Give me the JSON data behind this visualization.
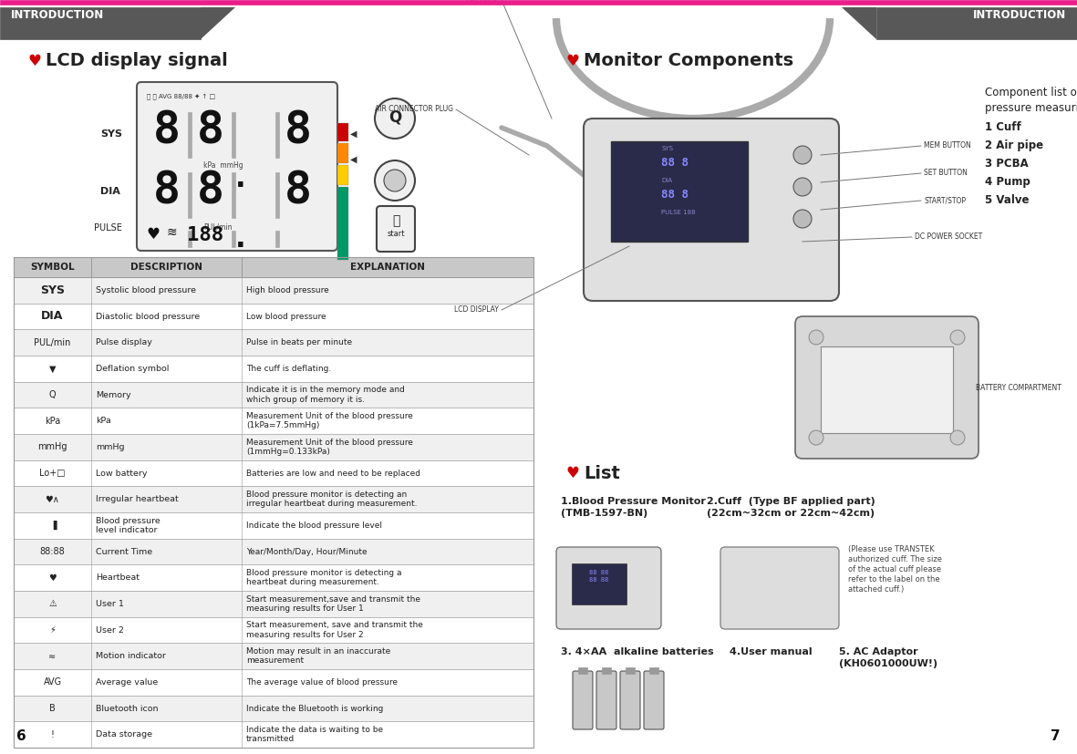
{
  "bg_color": "#ffffff",
  "header_color": "#585858",
  "header_text_color": "#ffffff",
  "pink_line_color": "#e91e8c",
  "page_title_left": "INTRODUCTION",
  "page_title_right": "INTRODUCTION",
  "page_num_left": "6",
  "page_num_right": "7",
  "heart_color": "#cc0000",
  "left_section_title": "LCD display signal",
  "table_header": [
    "SYMBOL",
    "DESCRIPTION",
    "EXPLANATION"
  ],
  "table_rows": [
    [
      "SYS",
      "Systolic blood pressure",
      "High blood pressure"
    ],
    [
      "DIA",
      "Diastolic blood pressure",
      "Low blood pressure"
    ],
    [
      "PUL/min",
      "Pulse display",
      "Pulse in beats per minute"
    ],
    [
      "▼",
      "Deflation symbol",
      "The cuff is deflating."
    ],
    [
      "Q",
      "Memory",
      "Indicate it is in the memory mode and\nwhich group of memory it is."
    ],
    [
      "kPa",
      "kPa",
      "Measurement Unit of the blood pressure\n(1kPa=7.5mmHg)"
    ],
    [
      "mmHg",
      "mmHg",
      "Measurement Unit of the blood pressure\n(1mmHg=0.133kPa)"
    ],
    [
      "Lo+□",
      "Low battery",
      "Batteries are low and need to be replaced"
    ],
    [
      "♥∧",
      "Irregular heartbeat",
      "Blood pressure monitor is detecting an\nirregular heartbeat during measurement."
    ],
    [
      "▐",
      "Blood pressure\nlevel indicator",
      "Indicate the blood pressure level"
    ],
    [
      "88:88",
      "Current Time",
      "Year/Month/Day, Hour/Minute"
    ],
    [
      "♥",
      "Heartbeat",
      "Blood pressure monitor is detecting a\nheartbeat during measurement."
    ],
    [
      "⚠",
      "User 1",
      "Start measurement,save and transmit the\nmeasuring results for User 1"
    ],
    [
      "⚡",
      "User 2",
      "Start measurement, save and transmit the\nmeasuring results for User 2"
    ],
    [
      "≈",
      "Motion indicator",
      "Motion may result in an inaccurate\nmeasurement"
    ],
    [
      "AVG",
      "Average value",
      "The average value of blood pressure"
    ],
    [
      "B",
      "Bluetooth icon",
      "Indicate the Bluetooth is working"
    ],
    [
      "!",
      "Data storage",
      "Indicate the data is waiting to be\ntransmitted"
    ]
  ],
  "table_header_bg": "#c8c8c8",
  "table_row_bg_odd": "#f0f0f0",
  "table_row_bg_even": "#ffffff",
  "table_border_color": "#999999",
  "right_section_title": "Monitor Components",
  "component_list_title": "Component list of\npressure measuring system",
  "component_list": [
    "1 Cuff",
    "2 Air pipe",
    "3 PCBA",
    "4 Pump",
    "5 Valve"
  ],
  "list_section_title": "List",
  "list_items": [
    "1.Blood Pressure Monitor\n(TMB-1597-BN)",
    "2.Cuff  (Type BF applied part)\n(22cm~32cm or 22cm~42cm)",
    "3. 4×AA  alkaline batteries",
    "4.User manual",
    "5. AC Adaptor\n(KH0601000UW!)"
  ],
  "list_note": "(Please use TRANSTEK\nauthorized cuff. The size\nof the actual cuff please\nrefer to the label on the\nattached cuff.)"
}
